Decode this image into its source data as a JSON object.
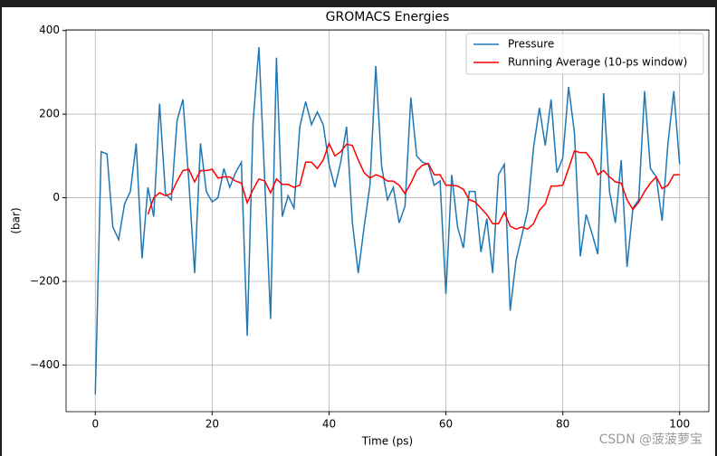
{
  "chart_data": {
    "type": "line",
    "title": "GROMACS Energies",
    "x_label": "Time (ps)",
    "y_label": "(bar)",
    "x": [
      0,
      1,
      2,
      3,
      4,
      5,
      6,
      7,
      8,
      9,
      10,
      11,
      12,
      13,
      14,
      15,
      16,
      17,
      18,
      19,
      20,
      21,
      22,
      23,
      24,
      25,
      26,
      27,
      28,
      29,
      30,
      31,
      32,
      33,
      34,
      35,
      36,
      37,
      38,
      39,
      40,
      41,
      42,
      43,
      44,
      45,
      46,
      47,
      48,
      49,
      50,
      51,
      52,
      53,
      54,
      55,
      56,
      57,
      58,
      59,
      60,
      61,
      62,
      63,
      64,
      65,
      66,
      67,
      68,
      69,
      70,
      71,
      72,
      73,
      74,
      75,
      76,
      77,
      78,
      79,
      80,
      81,
      82,
      83,
      84,
      85,
      86,
      87,
      88,
      89,
      90,
      91,
      92,
      93,
      94,
      95,
      96,
      97,
      98,
      99,
      100
    ],
    "series": [
      {
        "name": "Pressure",
        "color": "#1f77b4",
        "values": [
          -470,
          110,
          105,
          -70,
          -100,
          -15,
          15,
          130,
          -145,
          25,
          -45,
          225,
          10,
          -5,
          185,
          235,
          40,
          -180,
          130,
          15,
          -10,
          0,
          70,
          25,
          60,
          85,
          -330,
          180,
          360,
          40,
          -290,
          335,
          -45,
          5,
          -25,
          170,
          230,
          175,
          205,
          175,
          80,
          25,
          85,
          170,
          -60,
          -180,
          -70,
          30,
          315,
          75,
          -5,
          25,
          -60,
          -20,
          240,
          100,
          85,
          80,
          30,
          40,
          -230,
          55,
          -70,
          -120,
          15,
          15,
          -130,
          -50,
          -180,
          55,
          80,
          -270,
          -150,
          -90,
          -30,
          120,
          215,
          125,
          235,
          60,
          95,
          265,
          155,
          -140,
          -40,
          -85,
          -135,
          250,
          15,
          -60,
          90,
          -165,
          -25,
          -5,
          255,
          70,
          50,
          -55,
          130,
          255,
          80
        ]
      },
      {
        "name": "Running Average (10-ps window)",
        "color": "#ff0000",
        "values": [
          null,
          null,
          null,
          null,
          null,
          null,
          null,
          null,
          null,
          -40,
          0,
          12,
          5,
          10,
          40,
          65,
          68,
          38,
          65,
          65,
          68,
          47,
          50,
          50,
          40,
          35,
          -12,
          20,
          45,
          40,
          12,
          45,
          32,
          32,
          25,
          30,
          85,
          85,
          70,
          90,
          130,
          100,
          110,
          128,
          125,
          90,
          60,
          47,
          55,
          50,
          40,
          40,
          30,
          10,
          35,
          65,
          78,
          82,
          55,
          55,
          30,
          30,
          28,
          20,
          -5,
          -10,
          -25,
          -40,
          -62,
          -62,
          -35,
          -68,
          -75,
          -70,
          -75,
          -62,
          -30,
          -15,
          28,
          28,
          30,
          70,
          112,
          108,
          108,
          90,
          55,
          65,
          50,
          38,
          35,
          -5,
          -28,
          -10,
          15,
          35,
          50,
          22,
          30,
          55,
          55
        ]
      }
    ],
    "xlim": [
      -5,
      105
    ],
    "ylim": [
      -511.5,
      401.5
    ],
    "xticks": [
      0,
      20,
      40,
      60,
      80,
      100
    ],
    "yticks": [
      {
        "value": -400,
        "label": "−400"
      },
      {
        "value": -200,
        "label": "−200"
      },
      0,
      200,
      400
    ],
    "grid": true,
    "legend": "upper right",
    "watermark": "CSDN @菠菠萝宝"
  }
}
